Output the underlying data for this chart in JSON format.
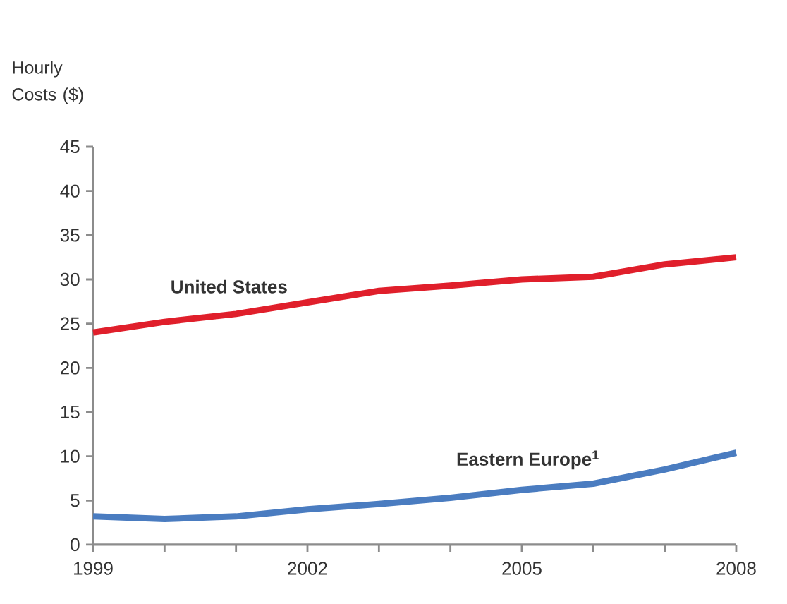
{
  "chart_data": {
    "type": "line",
    "ylabel": "Hourly Costs ($)",
    "x": [
      1999,
      2000,
      2001,
      2002,
      2003,
      2004,
      2005,
      2006,
      2007,
      2008
    ],
    "xlim": [
      1999,
      2008
    ],
    "xticks": [
      1999,
      {
        "value": 2000,
        "label": null
      },
      {
        "value": 2001,
        "label": null
      },
      2002,
      {
        "value": 2003,
        "label": null
      },
      {
        "value": 2004,
        "label": null
      },
      2005,
      {
        "value": 2006,
        "label": null
      },
      {
        "value": 2007,
        "label": null
      },
      2008
    ],
    "ylim": [
      0,
      45
    ],
    "yticks": [
      0,
      5,
      10,
      15,
      20,
      25,
      30,
      35,
      40,
      45
    ],
    "grid": false,
    "legend": false,
    "marker": "none",
    "line_style": "solid",
    "series": [
      {
        "name": "United States",
        "color": "#e01f2b",
        "values": [
          24.0,
          25.2,
          26.1,
          27.4,
          28.7,
          29.3,
          30.0,
          30.3,
          31.7,
          32.5
        ]
      },
      {
        "name": "Eastern Europe$^{1}$",
        "color": "#4a7cc0",
        "values": [
          3.2,
          2.9,
          3.2,
          4.0,
          4.6,
          5.3,
          6.2,
          6.9,
          8.5,
          10.4
        ]
      }
    ]
  }
}
